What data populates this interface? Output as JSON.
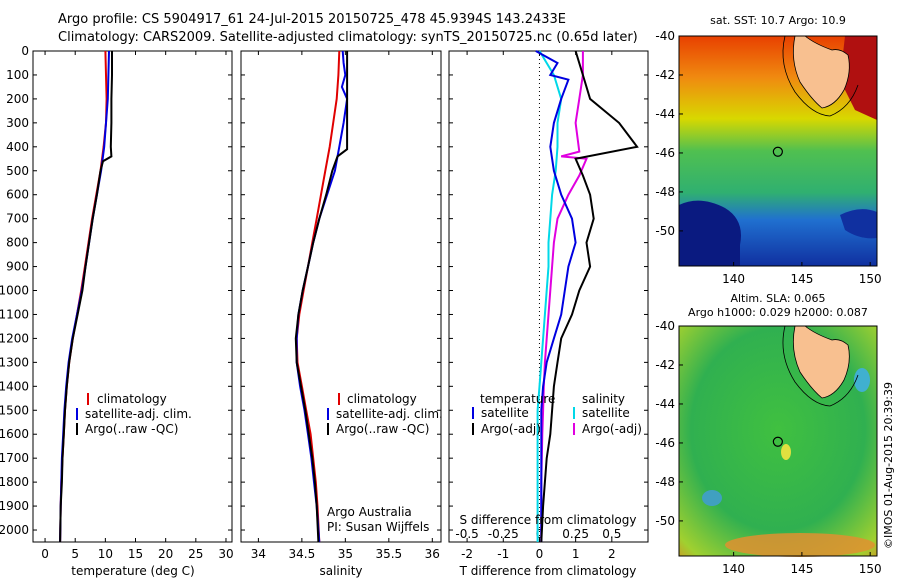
{
  "header": {
    "line1": "Argo profile: CS 5904917_61 24-Jul-2015 20150725_478 45.9394S 143.2433E",
    "line2": "Climatology: CARS2009. Satellite-adjusted climatology: synTS_20150725.nc (0.65d later)"
  },
  "depth_ticks": [
    "0",
    "100",
    "200",
    "300",
    "400",
    "500",
    "600",
    "700",
    "800",
    "900",
    "1000",
    "1100",
    "1200",
    "1300",
    "1400",
    "1500",
    "1600",
    "1700",
    "1800",
    "1900",
    "2000"
  ],
  "chart_data": [
    {
      "type": "line",
      "id": "temperature",
      "xlabel": "temperature (deg C)",
      "xlim": [
        -2,
        31
      ],
      "xticks": [
        "0",
        "5",
        "10",
        "15",
        "20",
        "25",
        "30"
      ],
      "ylim": [
        2050,
        0
      ],
      "legend": [
        "climatology",
        "satellite-adj. clim.",
        "Argo(..raw -QC)"
      ],
      "series": [
        {
          "color": "#e00000",
          "points": [
            [
              10.0,
              0
            ],
            [
              10.1,
              100
            ],
            [
              10.2,
              200
            ],
            [
              10.1,
              300
            ],
            [
              9.7,
              400
            ],
            [
              9.2,
              500
            ],
            [
              8.5,
              600
            ],
            [
              7.8,
              700
            ],
            [
              7.2,
              800
            ],
            [
              6.6,
              900
            ],
            [
              6.0,
              1000
            ],
            [
              5.3,
              1100
            ],
            [
              4.6,
              1200
            ],
            [
              4.0,
              1300
            ],
            [
              3.6,
              1400
            ],
            [
              3.3,
              1500
            ],
            [
              3.1,
              1600
            ],
            [
              2.9,
              1700
            ],
            [
              2.7,
              1800
            ],
            [
              2.6,
              1900
            ],
            [
              2.5,
              2050
            ]
          ]
        },
        {
          "color": "#0000e0",
          "points": [
            [
              10.6,
              0
            ],
            [
              10.5,
              100
            ],
            [
              10.4,
              200
            ],
            [
              10.1,
              300
            ],
            [
              9.8,
              400
            ],
            [
              9.3,
              500
            ],
            [
              8.6,
              600
            ],
            [
              7.9,
              700
            ],
            [
              7.3,
              800
            ],
            [
              6.7,
              900
            ],
            [
              6.1,
              1000
            ],
            [
              5.3,
              1100
            ],
            [
              4.5,
              1200
            ],
            [
              3.9,
              1300
            ],
            [
              3.5,
              1400
            ],
            [
              3.2,
              1500
            ],
            [
              3.0,
              1600
            ],
            [
              2.8,
              1700
            ],
            [
              2.7,
              1800
            ],
            [
              2.6,
              1900
            ],
            [
              2.5,
              2050
            ]
          ]
        },
        {
          "color": "#000000",
          "points": [
            [
              11.1,
              0
            ],
            [
              11.1,
              100
            ],
            [
              11.0,
              200
            ],
            [
              11.0,
              300
            ],
            [
              10.9,
              400
            ],
            [
              11.0,
              440
            ],
            [
              9.6,
              460
            ],
            [
              9.2,
              500
            ],
            [
              8.6,
              600
            ],
            [
              7.9,
              700
            ],
            [
              7.3,
              800
            ],
            [
              6.7,
              900
            ],
            [
              6.2,
              1000
            ],
            [
              5.4,
              1100
            ],
            [
              4.6,
              1200
            ],
            [
              4.0,
              1300
            ],
            [
              3.6,
              1400
            ],
            [
              3.3,
              1500
            ],
            [
              3.1,
              1600
            ],
            [
              2.9,
              1700
            ],
            [
              2.8,
              1800
            ],
            [
              2.6,
              1900
            ],
            [
              2.5,
              2050
            ]
          ]
        }
      ]
    },
    {
      "type": "line",
      "id": "salinity",
      "xlabel": "salinity",
      "xlim": [
        33.8,
        36.1
      ],
      "xticks": [
        "34",
        "34.5",
        "35",
        "35.5",
        "36"
      ],
      "ylim": [
        2050,
        0
      ],
      "legend": [
        "climatology",
        "satellite-adj. clim.",
        "Argo(..raw -QC)"
      ],
      "annotation": [
        "Argo Australia",
        "PI: Susan Wijffels"
      ],
      "series": [
        {
          "color": "#e00000",
          "points": [
            [
              34.93,
              0
            ],
            [
              34.92,
              100
            ],
            [
              34.9,
              200
            ],
            [
              34.86,
              300
            ],
            [
              34.82,
              400
            ],
            [
              34.77,
              500
            ],
            [
              34.72,
              600
            ],
            [
              34.67,
              700
            ],
            [
              34.62,
              800
            ],
            [
              34.57,
              900
            ],
            [
              34.52,
              1000
            ],
            [
              34.47,
              1100
            ],
            [
              34.44,
              1200
            ],
            [
              34.45,
              1300
            ],
            [
              34.5,
              1400
            ],
            [
              34.55,
              1500
            ],
            [
              34.6,
              1600
            ],
            [
              34.63,
              1700
            ],
            [
              34.66,
              1800
            ],
            [
              34.68,
              1900
            ],
            [
              34.7,
              2050
            ]
          ]
        },
        {
          "color": "#0000e0",
          "points": [
            [
              34.97,
              0
            ],
            [
              34.98,
              50
            ],
            [
              35.0,
              100
            ],
            [
              34.96,
              150
            ],
            [
              35.02,
              200
            ],
            [
              34.98,
              300
            ],
            [
              34.93,
              400
            ],
            [
              34.88,
              500
            ],
            [
              34.79,
              600
            ],
            [
              34.7,
              700
            ],
            [
              34.63,
              800
            ],
            [
              34.57,
              900
            ],
            [
              34.51,
              1000
            ],
            [
              34.46,
              1100
            ],
            [
              34.44,
              1200
            ],
            [
              34.44,
              1300
            ],
            [
              34.48,
              1400
            ],
            [
              34.53,
              1500
            ],
            [
              34.57,
              1600
            ],
            [
              34.61,
              1700
            ],
            [
              34.64,
              1800
            ],
            [
              34.67,
              1900
            ],
            [
              34.7,
              2050
            ]
          ]
        },
        {
          "color": "#000000",
          "points": [
            [
              35.02,
              0
            ],
            [
              35.02,
              300
            ],
            [
              35.02,
              410
            ],
            [
              34.91,
              440
            ],
            [
              34.85,
              500
            ],
            [
              34.78,
              600
            ],
            [
              34.7,
              700
            ],
            [
              34.63,
              800
            ],
            [
              34.57,
              900
            ],
            [
              34.51,
              1000
            ],
            [
              34.46,
              1100
            ],
            [
              34.43,
              1200
            ],
            [
              34.44,
              1300
            ],
            [
              34.49,
              1400
            ],
            [
              34.54,
              1500
            ],
            [
              34.58,
              1600
            ],
            [
              34.62,
              1700
            ],
            [
              34.65,
              1800
            ],
            [
              34.67,
              1900
            ],
            [
              34.69,
              2050
            ]
          ]
        }
      ]
    },
    {
      "type": "line",
      "id": "difference",
      "xlabel": "T difference from climatology",
      "xlabel_top": "S difference from climatology",
      "xlim": [
        -2.5,
        3.0
      ],
      "xticks": [
        "-2",
        "-1",
        "0",
        "1",
        "2"
      ],
      "sticks": [
        "-0.5",
        "-0.25",
        "0",
        "0.25",
        "0.5"
      ],
      "ylim": [
        2050,
        0
      ],
      "legend_left_title": "temperature",
      "legend_right_title": "salinity",
      "legend_left": [
        "satellite",
        "Argo(-adj)"
      ],
      "legend_right": [
        "satellite",
        "Argo(-adj)"
      ],
      "series": [
        {
          "color": "#00d8e8",
          "points": [
            [
              0.0,
              0
            ],
            [
              0.2,
              50
            ],
            [
              0.4,
              100
            ],
            [
              0.6,
              200
            ],
            [
              0.5,
              300
            ],
            [
              0.5,
              400
            ],
            [
              0.45,
              500
            ],
            [
              0.35,
              600
            ],
            [
              0.3,
              700
            ],
            [
              0.25,
              800
            ],
            [
              0.25,
              900
            ],
            [
              0.2,
              1000
            ],
            [
              0.15,
              1100
            ],
            [
              0.1,
              1200
            ],
            [
              0.05,
              1300
            ],
            [
              0.0,
              1400
            ],
            [
              -0.05,
              1500
            ],
            [
              -0.05,
              1600
            ],
            [
              -0.05,
              1800
            ],
            [
              -0.05,
              2050
            ]
          ]
        },
        {
          "color": "#e000e0",
          "points": [
            [
              1.2,
              0
            ],
            [
              1.2,
              100
            ],
            [
              1.1,
              200
            ],
            [
              1.0,
              300
            ],
            [
              1.1,
              420
            ],
            [
              0.6,
              440
            ],
            [
              1.3,
              450
            ],
            [
              1.1,
              520
            ],
            [
              0.8,
              600
            ],
            [
              0.5,
              700
            ],
            [
              0.4,
              800
            ],
            [
              0.35,
              900
            ],
            [
              0.3,
              1000
            ],
            [
              0.25,
              1100
            ],
            [
              0.2,
              1200
            ],
            [
              0.15,
              1300
            ],
            [
              0.12,
              1400
            ],
            [
              0.1,
              1500
            ],
            [
              0.08,
              1600
            ],
            [
              0.05,
              1800
            ],
            [
              0.05,
              2050
            ]
          ]
        },
        {
          "color": "#0000e0",
          "points": [
            [
              -0.1,
              0
            ],
            [
              0.5,
              50
            ],
            [
              0.3,
              100
            ],
            [
              0.8,
              120
            ],
            [
              0.6,
              200
            ],
            [
              0.4,
              300
            ],
            [
              0.3,
              400
            ],
            [
              0.4,
              500
            ],
            [
              0.6,
              600
            ],
            [
              0.9,
              700
            ],
            [
              1.0,
              800
            ],
            [
              0.8,
              900
            ],
            [
              0.7,
              1000
            ],
            [
              0.6,
              1100
            ],
            [
              0.4,
              1200
            ],
            [
              0.2,
              1300
            ],
            [
              0.1,
              1400
            ],
            [
              0.05,
              1500
            ],
            [
              0.05,
              1700
            ],
            [
              0.05,
              2050
            ]
          ]
        },
        {
          "color": "#000000",
          "points": [
            [
              1.0,
              0
            ],
            [
              1.2,
              100
            ],
            [
              1.4,
              200
            ],
            [
              2.2,
              300
            ],
            [
              2.7,
              400
            ],
            [
              1.0,
              450
            ],
            [
              1.2,
              520
            ],
            [
              1.4,
              600
            ],
            [
              1.5,
              700
            ],
            [
              1.3,
              800
            ],
            [
              1.4,
              900
            ],
            [
              1.1,
              1000
            ],
            [
              0.9,
              1100
            ],
            [
              0.6,
              1200
            ],
            [
              0.5,
              1300
            ],
            [
              0.4,
              1400
            ],
            [
              0.35,
              1500
            ],
            [
              0.3,
              1600
            ],
            [
              0.2,
              1700
            ],
            [
              0.15,
              1800
            ],
            [
              0.1,
              1900
            ],
            [
              0.05,
              2050
            ]
          ]
        }
      ]
    },
    {
      "type": "heatmap",
      "id": "sst-map",
      "title": "sat. SST: 10.7 Argo: 10.9",
      "xlim": [
        136,
        150.5
      ],
      "ylim": [
        -51.8,
        -40
      ],
      "xticks": [
        "140",
        "145",
        "150"
      ],
      "yticks": [
        "-40",
        "-42",
        "-44",
        "-46",
        "-48",
        "-50"
      ],
      "profile_marker": [
        143.24,
        -45.94
      ]
    },
    {
      "type": "heatmap",
      "id": "sla-map",
      "title": "Altim. SLA: 0.065",
      "subtitle": "Argo h1000: 0.029 h2000: 0.087",
      "xlim": [
        136,
        150.5
      ],
      "ylim": [
        -51.8,
        -40
      ],
      "xticks": [
        "140",
        "145",
        "150"
      ],
      "yticks": [
        "-40",
        "-42",
        "-44",
        "-46",
        "-48",
        "-50"
      ],
      "profile_marker": [
        143.24,
        -45.94
      ]
    }
  ],
  "credit": "©IMOS 01-Aug-2015 20:39:39",
  "colors": {
    "climatology": "#e00000",
    "satellite": "#0000e0",
    "argo": "#000000",
    "sat_salinity": "#00d8e8",
    "argo_salinity": "#e000e0",
    "land": "#f8c090"
  }
}
